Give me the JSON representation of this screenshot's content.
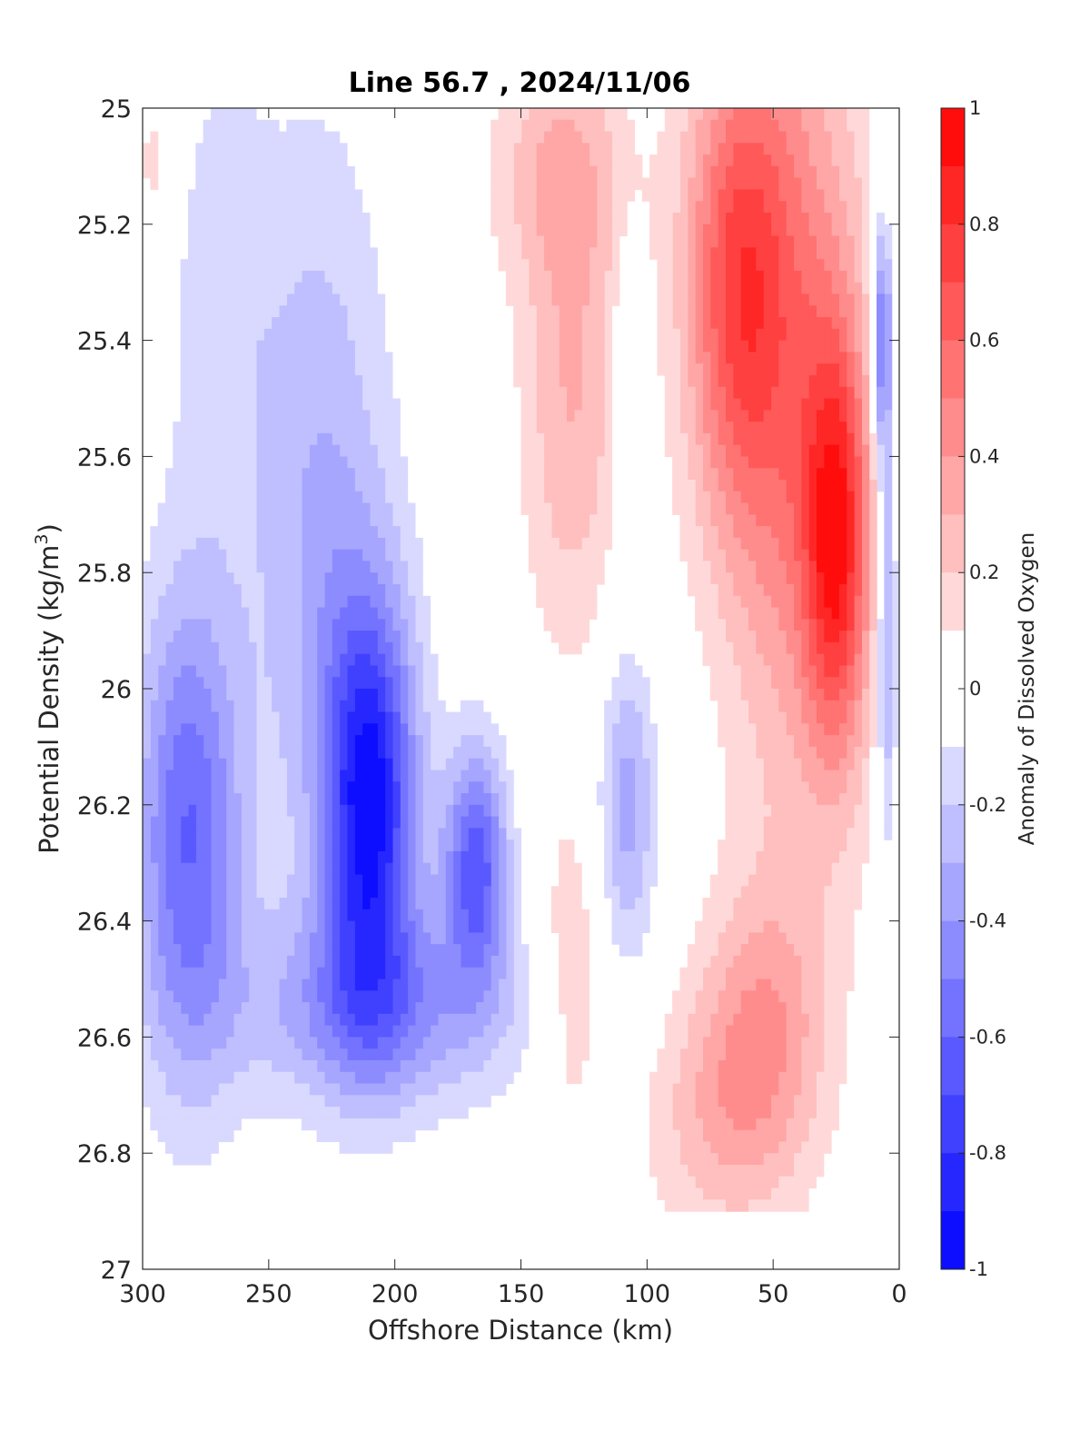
{
  "chart_data": {
    "type": "heatmap",
    "title": "Line 56.7 , 2024/11/06",
    "xlabel": "Offshore Distance (km)",
    "ylabel_text": "Potential Density (kg/m",
    "ylabel_sup": "3",
    "ylabel_close": ")",
    "colorbar_label": "Anomaly of Dissolved Oxygen",
    "x_ticks": [
      300,
      250,
      200,
      150,
      100,
      50,
      0
    ],
    "x_tick_labels": [
      "300",
      "250",
      "200",
      "150",
      "100",
      "50",
      "0"
    ],
    "xlim": [
      300,
      0
    ],
    "y_ticks": [
      25,
      25.2,
      25.4,
      25.6,
      25.8,
      26,
      26.2,
      26.4,
      26.6,
      26.8,
      27
    ],
    "y_tick_labels": [
      "25",
      "25.2",
      "25.4",
      "25.6",
      "25.8",
      "26",
      "26.2",
      "26.4",
      "26.6",
      "26.8",
      "27"
    ],
    "ylim": [
      25,
      27
    ],
    "y_reversed": true,
    "clim": [
      -1,
      1
    ],
    "colorbar_ticks": [
      1,
      0.8,
      0.6,
      0.4,
      0.2,
      0,
      -0.2,
      -0.4,
      -0.6,
      -0.8,
      -1
    ],
    "colorbar_tick_labels": [
      "1",
      "0.8",
      "0.6",
      "0.4",
      "0.2",
      "0",
      "-0.2",
      "-0.4",
      "-0.6",
      "-0.8",
      "-1"
    ],
    "colorbar_levels": 20,
    "colormap": {
      "negative": "#0000ff",
      "zero": "#ffffff",
      "positive": "#ff0000"
    },
    "data_extent": {
      "x_min": 0,
      "x_max": 300,
      "y_min": 25,
      "y_max": 26.9
    },
    "features": [
      {
        "x": 210,
        "y": 26.2,
        "value": -0.9,
        "sx": 13,
        "sy": 0.25
      },
      {
        "x": 168,
        "y": 26.3,
        "value": -0.65,
        "sx": 9,
        "sy": 0.14
      },
      {
        "x": 282,
        "y": 26.25,
        "value": -0.6,
        "sx": 15,
        "sy": 0.3
      },
      {
        "x": 230,
        "y": 25.7,
        "value": -0.3,
        "sx": 20,
        "sy": 0.45
      },
      {
        "x": 205,
        "y": 26.55,
        "value": -0.4,
        "sx": 40,
        "sy": 0.12
      },
      {
        "x": 270,
        "y": 25.3,
        "value": -0.15,
        "sx": 15,
        "sy": 0.3
      },
      {
        "x": 108,
        "y": 26.2,
        "value": -0.35,
        "sx": 8,
        "sy": 0.18
      },
      {
        "x": 108,
        "y": 25.5,
        "value": -0.15,
        "sx": 4,
        "sy": 0.2
      },
      {
        "x": 7,
        "y": 25.4,
        "value": -0.6,
        "sx": 3,
        "sy": 0.15
      },
      {
        "x": 5,
        "y": 25.9,
        "value": -0.4,
        "sx": 3,
        "sy": 0.25
      },
      {
        "x": 65,
        "y": 25.3,
        "value": 0.6,
        "sx": 15,
        "sy": 0.3
      },
      {
        "x": 25,
        "y": 25.75,
        "value": 0.7,
        "sx": 9,
        "sy": 0.25
      },
      {
        "x": 40,
        "y": 25.5,
        "value": 0.45,
        "sx": 20,
        "sy": 0.55
      },
      {
        "x": 55,
        "y": 26.6,
        "value": 0.35,
        "sx": 18,
        "sy": 0.18
      },
      {
        "x": 130,
        "y": 25.5,
        "value": 0.3,
        "sx": 14,
        "sy": 0.3
      },
      {
        "x": 135,
        "y": 25.1,
        "value": 0.25,
        "sx": 20,
        "sy": 0.15
      },
      {
        "x": 130,
        "y": 26.5,
        "value": 0.2,
        "sx": 10,
        "sy": 0.2
      },
      {
        "x": 295,
        "y": 25.1,
        "value": 0.15,
        "sx": 6,
        "sy": 0.1
      },
      {
        "x": 75,
        "y": 26.75,
        "value": 0.2,
        "sx": 20,
        "sy": 0.15
      }
    ]
  }
}
